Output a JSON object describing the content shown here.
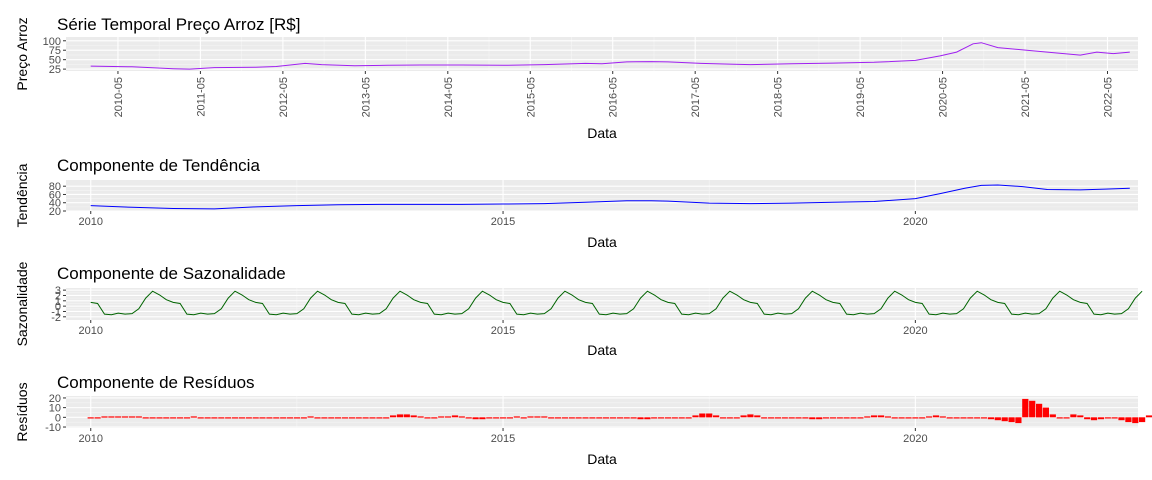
{
  "chart_data": [
    {
      "type": "line",
      "title": "Série Temporal Preço Arroz [R$]",
      "xlabel": "Data",
      "ylabel": "Preço Arroz",
      "color": "#a020f0",
      "x_range": [
        2009.7,
        2022.7
      ],
      "ylim": [
        20,
        110
      ],
      "y_ticks": [
        "25",
        "50",
        "75",
        "100"
      ],
      "x_ticks": [
        {
          "pos": 2010.33,
          "label": "2010-05"
        },
        {
          "pos": 2011.33,
          "label": "2011-05"
        },
        {
          "pos": 2012.33,
          "label": "2012-05"
        },
        {
          "pos": 2013.33,
          "label": "2013-05"
        },
        {
          "pos": 2014.33,
          "label": "2014-05"
        },
        {
          "pos": 2015.33,
          "label": "2015-05"
        },
        {
          "pos": 2016.33,
          "label": "2016-05"
        },
        {
          "pos": 2017.33,
          "label": "2017-05"
        },
        {
          "pos": 2018.33,
          "label": "2018-05"
        },
        {
          "pos": 2019.33,
          "label": "2019-05"
        },
        {
          "pos": 2020.33,
          "label": "2020-05"
        },
        {
          "pos": 2021.33,
          "label": "2021-05"
        },
        {
          "pos": 2022.33,
          "label": "2022-05"
        }
      ],
      "x": [
        2010.0,
        2010.5,
        2011.0,
        2011.2,
        2011.5,
        2012.0,
        2012.25,
        2012.6,
        2012.8,
        2013.2,
        2013.6,
        2014.0,
        2014.5,
        2015.0,
        2015.5,
        2016.0,
        2016.2,
        2016.5,
        2016.8,
        2017.0,
        2017.4,
        2017.8,
        2018.0,
        2018.5,
        2019.0,
        2019.5,
        2020.0,
        2020.3,
        2020.5,
        2020.7,
        2020.8,
        2021.0,
        2021.2,
        2021.5,
        2021.7,
        2021.9,
        2022.0,
        2022.2,
        2022.4,
        2022.6
      ],
      "y": [
        33,
        31,
        26,
        25,
        29,
        30,
        32,
        40,
        37,
        34,
        35,
        36,
        36,
        35,
        37,
        40,
        39,
        44,
        45,
        44,
        40,
        38,
        37,
        39,
        41,
        43,
        48,
        60,
        70,
        92,
        95,
        82,
        78,
        72,
        68,
        64,
        62,
        70,
        66,
        70
      ]
    },
    {
      "type": "line",
      "title": "Componente de Tendência",
      "xlabel": "Data",
      "ylabel": "Tendência",
      "color": "#0000ff",
      "x_range": [
        2009.7,
        2022.7
      ],
      "ylim": [
        20,
        95
      ],
      "y_ticks": [
        "20",
        "40",
        "60",
        "80"
      ],
      "x_ticks": [
        {
          "pos": 2010,
          "label": "2010"
        },
        {
          "pos": 2015,
          "label": "2015"
        },
        {
          "pos": 2020,
          "label": "2020"
        }
      ],
      "x": [
        2010.0,
        2010.5,
        2011.0,
        2011.5,
        2012.0,
        2012.5,
        2013.0,
        2013.5,
        2014.0,
        2014.5,
        2015.0,
        2015.5,
        2016.0,
        2016.5,
        2016.8,
        2017.0,
        2017.5,
        2018.0,
        2018.5,
        2019.0,
        2019.5,
        2020.0,
        2020.3,
        2020.6,
        2020.8,
        2021.0,
        2021.3,
        2021.6,
        2022.0,
        2022.3,
        2022.6
      ],
      "y": [
        33,
        29,
        26,
        25,
        30,
        33,
        35,
        36,
        36,
        36,
        37,
        38,
        41,
        45,
        45,
        44,
        39,
        38,
        39,
        41,
        43,
        50,
        62,
        75,
        82,
        83,
        79,
        72,
        71,
        73,
        75
      ]
    },
    {
      "type": "line",
      "title": "Componente de Sazonalidade",
      "xlabel": "Data",
      "ylabel": "Sazonalidade",
      "color": "#006400",
      "x_range": [
        2009.7,
        2022.7
      ],
      "ylim": [
        -2.6,
        3.4
      ],
      "y_ticks": [
        "-2",
        "-1",
        "0",
        "1",
        "2",
        "3"
      ],
      "x_ticks": [
        {
          "pos": 2010,
          "label": "2010"
        },
        {
          "pos": 2015,
          "label": "2015"
        },
        {
          "pos": 2020,
          "label": "2020"
        }
      ],
      "seasonal_profile": [
        0.7,
        0.5,
        -1.5,
        -1.6,
        -1.3,
        -1.5,
        -1.4,
        -0.5,
        1.5,
        2.8,
        2.1,
        1.2
      ],
      "years": [
        2010,
        2011,
        2012,
        2013,
        2014,
        2015,
        2016,
        2017,
        2018,
        2019,
        2020,
        2021,
        2022
      ],
      "last_month_index": 9
    },
    {
      "type": "bar",
      "title": "Componente de Resíduos",
      "xlabel": "Data",
      "ylabel": "Resíduos",
      "color": "#ff0000",
      "x_range": [
        2009.7,
        2022.7
      ],
      "ylim": [
        -11,
        22
      ],
      "y_ticks": [
        "-10",
        "0",
        "10",
        "20"
      ],
      "x_ticks": [
        {
          "pos": 2010,
          "label": "2010"
        },
        {
          "pos": 2015,
          "label": "2015"
        },
        {
          "pos": 2020,
          "label": "2020"
        }
      ],
      "start": 2010.0,
      "values": [
        0,
        0,
        1,
        1,
        1,
        1,
        1,
        1,
        -1,
        -1,
        0,
        0,
        0,
        0,
        0,
        1,
        0,
        -1,
        -1,
        0,
        0,
        -1,
        -1,
        0,
        0,
        0,
        -1,
        0,
        0,
        0,
        0,
        0,
        1,
        0,
        0,
        0,
        0,
        0,
        0,
        0,
        0,
        0,
        0,
        0,
        2,
        3,
        3,
        2,
        1,
        0,
        0,
        1,
        1,
        2,
        1,
        0,
        -2,
        -2,
        -1,
        0,
        0,
        0,
        1,
        0,
        1,
        1,
        1,
        0,
        0,
        0,
        -1,
        -1,
        -1,
        0,
        0,
        0,
        0,
        0,
        0,
        -1,
        -2,
        -2,
        -1,
        0,
        0,
        0,
        0,
        0,
        2,
        4,
        4,
        2,
        0,
        0,
        0,
        2,
        3,
        2,
        -1,
        -1,
        0,
        0,
        0,
        0,
        0,
        -2,
        -2,
        -1,
        0,
        0,
        0,
        0,
        0,
        1,
        2,
        2,
        1,
        0,
        0,
        0,
        0,
        0,
        1,
        2,
        1,
        0,
        -1,
        -1,
        -1,
        -1,
        -1,
        -2,
        -3,
        -4,
        -5,
        -6,
        19,
        17,
        14,
        10,
        3,
        0,
        0,
        3,
        2,
        -2,
        -3,
        -2,
        0,
        -1,
        -3,
        -5,
        -6,
        -5,
        2,
        5,
        2,
        0,
        0,
        3,
        2
      ]
    }
  ]
}
